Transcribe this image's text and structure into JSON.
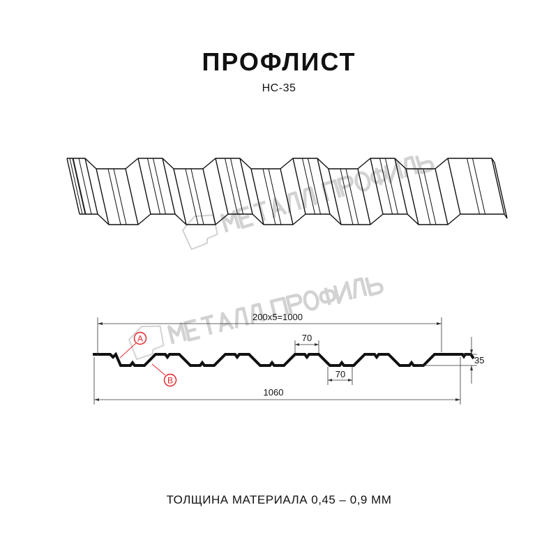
{
  "header": {
    "title": "ПРОФЛИСТ",
    "model": "НС-35"
  },
  "watermark": {
    "logo_text": "МЕТАЛЛ ПРОФИЛЬ",
    "color": "#d2d2d2"
  },
  "profile_drawing": {
    "dimensions": {
      "useful_width": "200x5=1000",
      "total_width": "1060",
      "top_flat": "70",
      "bottom_flat": "70",
      "height": "35"
    },
    "markers": {
      "a": "A",
      "b": "B",
      "color": "#e31e24"
    }
  },
  "footer": {
    "thickness": "ТОЛЩИНА МАТЕРИАЛА 0,45 – 0,9 ММ"
  }
}
